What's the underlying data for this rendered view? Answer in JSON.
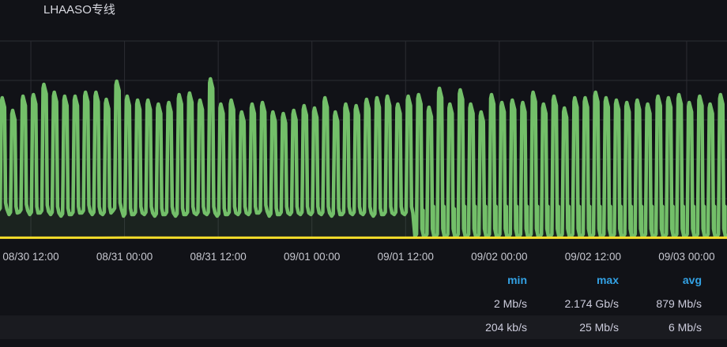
{
  "panel": {
    "title": "LHAASO专线"
  },
  "legend": {
    "headers": [
      "min",
      "max",
      "avg"
    ],
    "rows": [
      {
        "color": "#73bf69",
        "min": "2 Mb/s",
        "max": "2.174 Gb/s",
        "avg": "879 Mb/s"
      },
      {
        "color": "#fade2a",
        "min": "204 kb/s",
        "max": "25 Mb/s",
        "avg": "6 Mb/s"
      }
    ]
  },
  "chart_data": {
    "type": "area",
    "xlim": [
      "2023-08-30T08:03",
      "2023-09-03T05:10"
    ],
    "ylim": [
      0,
      2.5
    ],
    "y_unit": "Gb/s",
    "grid": true,
    "x_ticks": [
      "08/30 12:00",
      "08/31 00:00",
      "08/31 12:00",
      "09/01 00:00",
      "09/01 12:00",
      "09/02 00:00",
      "09/02 12:00",
      "09/03 00:00"
    ],
    "x_tick_times": [
      "2023-08-30T12:00",
      "2023-08-31T00:00",
      "2023-08-31T12:00",
      "2023-09-01T00:00",
      "2023-09-01T12:00",
      "2023-09-02T00:00",
      "2023-09-02T12:00",
      "2023-09-03T00:00"
    ],
    "series": [
      {
        "color": "#73bf69",
        "pulse_times": [
          "08/30 08:30",
          "08/30 09:50",
          "08/30 11:10",
          "08/30 12:30",
          "08/30 13:50",
          "08/30 15:10",
          "08/30 16:30",
          "08/30 17:50",
          "08/30 19:10",
          "08/30 20:30",
          "08/30 21:50",
          "08/30 23:10",
          "08/31 00:30",
          "08/31 01:50",
          "08/31 03:10",
          "08/31 04:30",
          "08/31 05:50",
          "08/31 07:10",
          "08/31 08:30",
          "08/31 09:50",
          "08/31 11:10",
          "08/31 12:30",
          "08/31 13:50",
          "08/31 15:10",
          "08/31 16:30",
          "08/31 17:50",
          "08/31 19:10",
          "08/31 20:30",
          "08/31 21:50",
          "08/31 23:10",
          "09/01 00:30",
          "09/01 01:50",
          "09/01 03:10",
          "09/01 04:30",
          "09/01 05:50",
          "09/01 07:10",
          "09/01 08:30",
          "09/01 09:50",
          "09/01 11:10",
          "09/01 12:30",
          "09/01 13:50",
          "09/01 15:10",
          "09/01 16:30",
          "09/01 17:50",
          "09/01 19:10",
          "09/01 20:30",
          "09/01 21:50",
          "09/01 23:10",
          "09/02 00:30",
          "09/02 01:50",
          "09/02 03:10",
          "09/02 04:30",
          "09/02 05:50",
          "09/02 07:10",
          "09/02 08:30",
          "09/02 09:50",
          "09/02 11:10",
          "09/02 12:30",
          "09/02 13:50",
          "09/02 15:10",
          "09/02 16:30",
          "09/02 17:50",
          "09/02 19:10",
          "09/02 20:30",
          "09/02 21:50",
          "09/02 23:10",
          "09/03 00:30",
          "09/03 01:50",
          "09/03 03:10",
          "09/03 04:30",
          "09/03 05:50"
        ],
        "peaks": [
          1.78,
          1.62,
          1.8,
          1.82,
          1.95,
          1.85,
          1.8,
          1.8,
          1.85,
          1.85,
          1.76,
          1.99,
          1.8,
          1.75,
          1.75,
          1.7,
          1.72,
          1.82,
          1.84,
          1.75,
          2.02,
          1.7,
          1.75,
          1.6,
          1.7,
          1.72,
          1.6,
          1.58,
          1.62,
          1.68,
          1.65,
          1.78,
          1.6,
          1.7,
          1.68,
          1.76,
          1.78,
          1.8,
          1.7,
          1.8,
          1.82,
          1.66,
          1.9,
          1.7,
          1.88,
          1.7,
          1.6,
          1.82,
          1.72,
          1.75,
          1.72,
          1.85,
          1.7,
          1.8,
          1.65,
          1.78,
          1.78,
          1.85,
          1.78,
          1.75,
          1.72,
          1.75,
          1.7,
          1.8,
          1.78,
          1.82,
          1.72,
          1.8,
          1.7,
          1.82,
          1.75
        ],
        "troughs": [
          0.35,
          0.3,
          0.33,
          0.3,
          0.32,
          0.3,
          0.28,
          0.3,
          0.32,
          0.3,
          0.3,
          0.35,
          0.28,
          0.3,
          0.3,
          0.28,
          0.3,
          0.28,
          0.3,
          0.3,
          0.3,
          0.28,
          0.3,
          0.3,
          0.3,
          0.32,
          0.28,
          0.3,
          0.3,
          0.3,
          0.3,
          0.3,
          0.28,
          0.3,
          0.3,
          0.3,
          0.28,
          0.3,
          0.3,
          0.3,
          0.02,
          0.02,
          0.02,
          0.02,
          0.02,
          0.02,
          0.02,
          0.02,
          0.02,
          0.02,
          0.02,
          0.02,
          0.02,
          0.02,
          0.02,
          0.02,
          0.02,
          0.02,
          0.02,
          0.02,
          0.02,
          0.02,
          0.02,
          0.02,
          0.02,
          0.02,
          0.02,
          0.02,
          0.02,
          0.02,
          0.02
        ],
        "shoulders": [
          0,
          0,
          0,
          0,
          0,
          0,
          0,
          0,
          0,
          0,
          0,
          0,
          0,
          0,
          0,
          0,
          0,
          0,
          0,
          0,
          0,
          0,
          0,
          0,
          0,
          0,
          0,
          0,
          0,
          0,
          0,
          0,
          0,
          0,
          0,
          0,
          0,
          0,
          0,
          0,
          0.4,
          0.45,
          0.45,
          0.42,
          0.45,
          0.45,
          0.45,
          0.45,
          0.45,
          0.45,
          0.45,
          0.45,
          0.45,
          0.45,
          0.45,
          0.45,
          0.45,
          0.45,
          0.45,
          0.45,
          0.45,
          0.45,
          0.45,
          0.45,
          0.45,
          0.45,
          0.45,
          0.45,
          0.45,
          0.45,
          0.45
        ]
      },
      {
        "color": "#fade2a",
        "x": [
          "08/30 08:03",
          "08/31 00:00",
          "09/01 00:00",
          "09/02 00:00",
          "09/03 05:10"
        ],
        "values": [
          0.006,
          0.007,
          0.006,
          0.006,
          0.006
        ]
      }
    ]
  }
}
